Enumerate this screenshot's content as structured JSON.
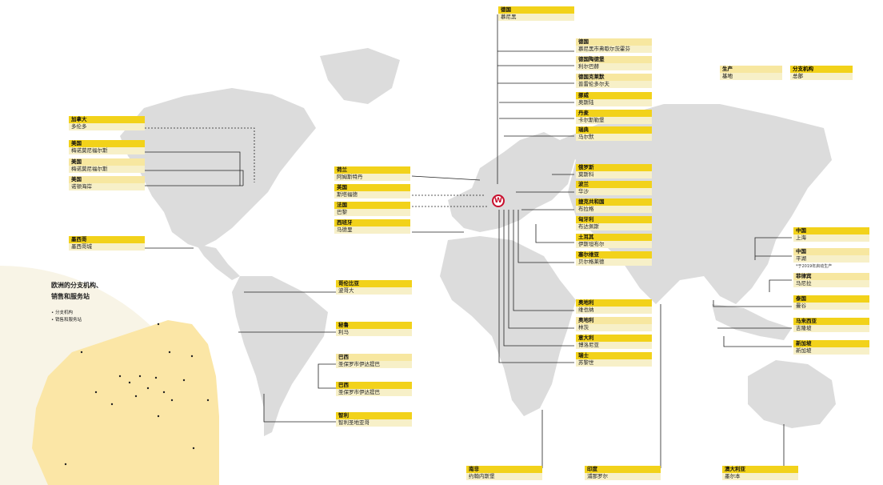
{
  "legend": {
    "production": {
      "title": "生产",
      "subtitle": "基地"
    },
    "subsidiaries": {
      "title": "分支机构",
      "subtitle": "总部"
    }
  },
  "europe_inset": {
    "title_line1": "欧洲的分支机构、",
    "title_line2": "销售和服务站",
    "legend_items": [
      "• 分支机构",
      "• 销售和服务站"
    ]
  },
  "logo_text": "W",
  "labels": {
    "de_munich": {
      "country": "德国",
      "city": "慕尼黑"
    },
    "de_munich2": {
      "country": "德国",
      "city": "慕尼黑市弗歇尔茨霍芬"
    },
    "de_bad_tolz": {
      "country": "德国陶德堡",
      "city": "利尔巴赫"
    },
    "de_korbach": {
      "country": "德国克莱默",
      "city": "普雷伦多尔夫"
    },
    "no": {
      "country": "挪威",
      "city": "奥斯陆"
    },
    "dk": {
      "country": "丹麦",
      "city": "卡尔斯勒堡"
    },
    "se": {
      "country": "瑞典",
      "city": "马尔默"
    },
    "ru": {
      "country": "俄罗斯",
      "city": "莫斯科"
    },
    "pl": {
      "country": "波兰",
      "city": "华沙"
    },
    "cz": {
      "country": "捷克共和国",
      "city": "布拉格"
    },
    "hu": {
      "country": "匈牙利",
      "city": "布达佩斯"
    },
    "tr": {
      "country": "土耳其",
      "city": "伊斯坦布尔"
    },
    "rs": {
      "country": "塞尔维亚",
      "city": "贝尔格莱德"
    },
    "at": {
      "country": "奥地利",
      "city": "维也纳"
    },
    "at2": {
      "country": "奥地利",
      "city": "林茨"
    },
    "it": {
      "country": "意大利",
      "city": "博洛尼亚"
    },
    "ch": {
      "country": "瑞士",
      "city": "苏黎世"
    },
    "nl": {
      "country": "荷兰",
      "city": "阿姆斯特丹"
    },
    "uk": {
      "country": "英国",
      "city": "斯塔福德"
    },
    "fr": {
      "country": "法国",
      "city": "巴黎"
    },
    "es": {
      "country": "西班牙",
      "city": "马德里"
    },
    "ca": {
      "country": "加拿大",
      "city": "多伦多"
    },
    "us1": {
      "country": "美国",
      "city": "梅诺莫尼福尔斯"
    },
    "us2": {
      "country": "美国",
      "city": "梅诺莫尼福尔斯"
    },
    "us3": {
      "country": "美国",
      "city": "诺顿海岸"
    },
    "mx": {
      "country": "墨西哥",
      "city": "墨西哥城"
    },
    "co": {
      "country": "哥伦比亚",
      "city": "波哥大"
    },
    "pe": {
      "country": "秘鲁",
      "city": "利马"
    },
    "br1": {
      "country": "巴西",
      "city": "圣保罗市伊达提巴"
    },
    "br2": {
      "country": "巴西",
      "city": "圣保罗市伊达提巴"
    },
    "cl": {
      "country": "智利",
      "city": "智利圣地亚哥"
    },
    "za": {
      "country": "南非",
      "city": "约翰内斯堡"
    },
    "in": {
      "country": "印度",
      "city": "浦那罗尔"
    },
    "au": {
      "country": "澳大利亚",
      "city": "墨尔本"
    },
    "cn1": {
      "country": "中国",
      "city": "上海"
    },
    "cn2": {
      "country": "中国",
      "city": "平湖",
      "note": "*于2019年启动生产"
    },
    "ph": {
      "country": "菲律宾",
      "city": "马尼拉"
    },
    "th": {
      "country": "泰国",
      "city": "曼谷"
    },
    "my": {
      "country": "马来西亚",
      "city": "吉隆坡"
    },
    "sg": {
      "country": "新加坡",
      "city": "新加坡"
    }
  },
  "colors": {
    "land": "#dcdcdc",
    "europe_inset": "#fbe6a6",
    "label_country": "#f2d21a",
    "label_city": "#f7f0c8",
    "leader_line": "#222222",
    "logo_ring": "#c8102e"
  }
}
